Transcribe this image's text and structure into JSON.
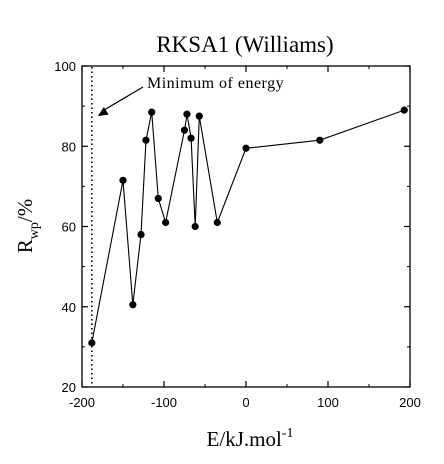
{
  "chart_data": {
    "type": "line",
    "title": "RKSA1 (Williams)",
    "xlabel": "E/kJ.mol",
    "xlabel_superscript": "-1",
    "ylabel": "R",
    "ylabel_subscript": "wp",
    "ylabel_suffix": "/%",
    "xlim": [
      -200,
      200
    ],
    "ylim": [
      20,
      100
    ],
    "x_ticks": [
      -200,
      -100,
      0,
      100,
      200
    ],
    "y_ticks": [
      20,
      40,
      60,
      80,
      100
    ],
    "grid": false,
    "legend": "none",
    "series": [
      {
        "marker": "filled-circle",
        "color": "#000000",
        "points": [
          [
            -188,
            31
          ],
          [
            -150,
            71.5
          ],
          [
            -138,
            40.5
          ],
          [
            -128,
            58
          ],
          [
            -122,
            81.5
          ],
          [
            -115,
            88.5
          ],
          [
            -107,
            67
          ],
          [
            -98,
            61
          ],
          [
            -75,
            84
          ],
          [
            -72,
            88
          ],
          [
            -67,
            82
          ],
          [
            -62,
            60
          ],
          [
            -57,
            87.5
          ],
          [
            -35,
            61
          ],
          [
            0,
            79.5
          ],
          [
            90,
            81.5
          ],
          [
            193,
            89
          ]
        ]
      }
    ],
    "reference_line": {
      "x": -188,
      "style": "dotted"
    },
    "annotation": {
      "text": "Minimum of energy",
      "arrow_target_x": -188,
      "arrow_target_y": 88
    }
  }
}
